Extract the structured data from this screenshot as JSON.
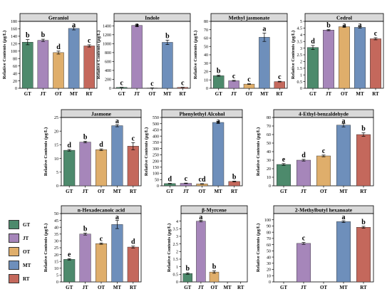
{
  "colors": {
    "GT": "#4d8a6c",
    "JT": "#a686ba",
    "OT": "#dfae6b",
    "MT": "#6e8fbb",
    "RT": "#c4685c"
  },
  "legend": [
    {
      "key": "GT",
      "label": "GT"
    },
    {
      "key": "JT",
      "label": "JT"
    },
    {
      "key": "OT",
      "label": "OT"
    },
    {
      "key": "MT",
      "label": "MT"
    },
    {
      "key": "RT",
      "label": "RT"
    }
  ],
  "chart_data": [
    {
      "type": "bar",
      "title": "Geraniol",
      "ylabel": "Relative Contents (μg/L)",
      "categories": [
        "GT",
        "JT",
        "OT",
        "MT",
        "RT"
      ],
      "values": [
        124,
        129,
        96,
        161,
        114
      ],
      "errors": [
        7,
        3,
        4,
        4,
        3
      ],
      "letters": [
        "b",
        "b",
        "d",
        "a",
        "c"
      ],
      "ylim": [
        0,
        180
      ],
      "yticks": [
        0,
        20,
        40,
        60,
        80,
        100,
        120,
        140,
        160,
        180
      ]
    },
    {
      "type": "bar",
      "title": "Indole",
      "ylabel": "Relative Contents (μg/L)",
      "categories": [
        "GT",
        "JT",
        "OT",
        "MT",
        "RT"
      ],
      "values": [
        20,
        1410,
        6,
        1030,
        20
      ],
      "errors": [
        3,
        20,
        2,
        50,
        3
      ],
      "letters": [
        "c",
        "a",
        "c",
        "b",
        "c"
      ],
      "ylim": [
        0,
        1500
      ],
      "yticks": [
        0,
        200,
        400,
        600,
        800,
        1000,
        1200,
        1400
      ]
    },
    {
      "type": "bar",
      "title": "Methyl jasmonate",
      "ylabel": "Relative Contents (μg/L)",
      "categories": [
        "GT",
        "JT",
        "OT",
        "MT",
        "RT"
      ],
      "values": [
        15,
        9,
        5,
        61,
        8
      ],
      "errors": [
        0.7,
        0.5,
        0.4,
        5,
        0.4
      ],
      "letters": [
        "b",
        "c",
        "c",
        "a",
        "c"
      ],
      "ylim": [
        0,
        80
      ],
      "yticks": [
        0,
        10,
        20,
        30,
        40,
        50,
        60,
        70,
        80
      ]
    },
    {
      "type": "bar",
      "title": "Cedrol",
      "ylabel": "Relative Contents (μg/L)",
      "categories": [
        "GT",
        "JT",
        "OT",
        "MT",
        "RT"
      ],
      "values": [
        3.05,
        4.35,
        4.6,
        4.55,
        3.7
      ],
      "errors": [
        0.15,
        0.05,
        0.05,
        0.05,
        0.08
      ],
      "letters": [
        "d",
        "b",
        "a",
        "a",
        "c"
      ],
      "ylim": [
        0,
        5
      ],
      "yticks": [
        0,
        0.5,
        1,
        1.5,
        2,
        2.5,
        3,
        3.5,
        4,
        4.5,
        5
      ]
    },
    {
      "type": "bar",
      "title": "Jasmone",
      "ylabel": "Relative Contents (μg/L)",
      "categories": [
        "GT",
        "JT",
        "OT",
        "MT",
        "RT"
      ],
      "values": [
        13,
        16,
        13.2,
        22,
        14.5
      ],
      "errors": [
        0.3,
        0.3,
        0.3,
        0.4,
        1.3
      ],
      "letters": [
        "d",
        "b",
        "d",
        "a",
        "c"
      ],
      "ylim": [
        0,
        25
      ],
      "yticks": [
        0,
        5,
        10,
        15,
        20,
        25
      ]
    },
    {
      "type": "bar",
      "title": "Phenylethyl Alcohol",
      "ylabel": "Relative Contents (μg/L)",
      "categories": [
        "GT",
        "JT",
        "OT",
        "MT",
        "RT"
      ],
      "values": [
        18,
        20,
        15,
        510,
        35
      ],
      "errors": [
        2,
        2,
        2,
        8,
        3
      ],
      "letters": [
        "d",
        "c",
        "cd",
        "a",
        "b"
      ],
      "ylim": [
        0,
        550
      ],
      "yticks": [
        0,
        50,
        100,
        150,
        200,
        250,
        300,
        350,
        400,
        450,
        500,
        550
      ]
    },
    {
      "type": "bar",
      "title": "4-Ethyl-benzaldehyde",
      "ylabel": "Relative Contents (μg/L)",
      "categories": [
        "GT",
        "JT",
        "OT",
        "MT",
        "RT"
      ],
      "values": [
        25,
        30,
        35,
        71,
        60
      ],
      "errors": [
        1,
        1,
        1,
        2,
        2
      ],
      "letters": [
        "e",
        "d",
        "c",
        "a",
        "b"
      ],
      "ylim": [
        0,
        80
      ],
      "yticks": [
        0,
        10,
        20,
        30,
        40,
        50,
        60,
        70,
        80
      ]
    },
    {
      "type": "bar",
      "title": "n-Hexadecanoic acid",
      "ylabel": "Relative Contents (μg/L)",
      "categories": [
        "GT",
        "JT",
        "OT",
        "MT",
        "RT"
      ],
      "values": [
        16.5,
        35,
        28,
        42,
        25.5
      ],
      "errors": [
        0.5,
        0.7,
        0.5,
        3,
        0.7
      ],
      "letters": [
        "e",
        "b",
        "c",
        "a",
        "d"
      ],
      "ylim": [
        0,
        50
      ],
      "yticks": [
        0,
        5,
        10,
        15,
        20,
        25,
        30,
        35,
        40,
        45,
        50
      ]
    },
    {
      "type": "bar",
      "title": "β-Myrcene",
      "ylabel": "Relative Contents (μg/L)",
      "categories": [
        "GT",
        "JT",
        "OT",
        "MT",
        "RT"
      ],
      "values": [
        0.55,
        4.0,
        0.65,
        0,
        0
      ],
      "errors": [
        0.05,
        0.05,
        0.08,
        0,
        0
      ],
      "letters": [
        "b",
        "a",
        "b",
        "",
        ""
      ],
      "ylim": [
        0,
        4.5
      ],
      "yticks": [
        0,
        0.5,
        1,
        1.5,
        2,
        2.5,
        3,
        3.5,
        4
      ]
    },
    {
      "type": "bar",
      "title": "2-Methylbutyl hexanoate",
      "ylabel": "Relative Contents (μg/L)",
      "categories": [
        "GT",
        "JT",
        "OT",
        "MT",
        "RT"
      ],
      "values": [
        0,
        62,
        0,
        97,
        88
      ],
      "errors": [
        0,
        1.5,
        0,
        1.5,
        1.5
      ],
      "letters": [
        "",
        "c",
        "",
        "a",
        "b"
      ],
      "ylim": [
        0,
        110
      ],
      "yticks": [
        0,
        10,
        20,
        30,
        40,
        50,
        60,
        70,
        80,
        90,
        100
      ]
    }
  ]
}
